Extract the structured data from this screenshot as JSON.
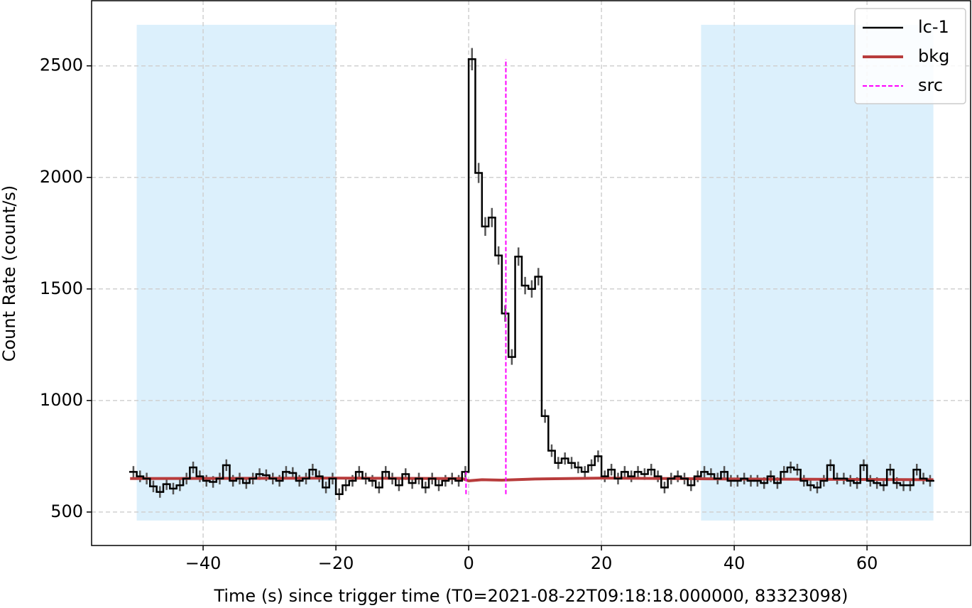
{
  "chart_data": {
    "type": "histogram",
    "xlabel": "Time (s) since trigger time (T0=2021-08-22T09:18:18.000000, 83323098)",
    "ylabel": "Count Rate (count/s)",
    "xlim": [
      -56.8,
      75.6
    ],
    "ylim": [
      350,
      2792
    ],
    "xticks": [
      {
        "value": -40,
        "label": "−40"
      },
      {
        "value": -20,
        "label": "−20"
      },
      0,
      20,
      40,
      60
    ],
    "yticks": [
      500,
      1000,
      1500,
      2000,
      2500
    ],
    "grid": true,
    "legend": "upper right",
    "bins": [
      -51,
      -50,
      -49,
      -48,
      -47,
      -46,
      -45,
      -44,
      -43,
      -42,
      -41,
      -40,
      -39,
      -38,
      -37,
      -36,
      -35,
      -34,
      -33,
      -32,
      -31,
      -30,
      -29,
      -28,
      -27,
      -26,
      -25,
      -24,
      -23,
      -22,
      -21,
      -20,
      -19,
      -18,
      -17,
      -16,
      -15,
      -14,
      -13,
      -12,
      -11,
      -10,
      -9,
      -8,
      -7,
      -6,
      -5,
      -4,
      -3,
      -2,
      -1,
      0,
      1,
      2,
      3,
      4,
      5,
      6,
      7,
      8,
      9,
      10,
      11,
      12,
      13,
      14,
      15,
      16,
      17,
      18,
      19,
      20,
      21,
      22,
      23,
      24,
      25,
      26,
      27,
      28,
      29,
      30,
      31,
      32,
      33,
      34,
      35,
      36,
      37,
      38,
      39,
      40,
      41,
      42,
      43,
      44,
      45,
      46,
      47,
      48,
      49,
      50,
      51,
      52,
      53,
      54,
      55,
      56,
      57,
      58,
      59,
      60,
      61,
      62,
      63,
      64,
      65,
      66,
      67,
      68,
      69,
      70
    ],
    "shaded_regions": [
      [
        -50,
        -20
      ],
      [
        35,
        70
      ]
    ],
    "shade_ylim": [
      462,
      2684
    ],
    "shade_color": "#dcf0fc",
    "series": [
      {
        "name": "lc-1",
        "color": "#000000",
        "error_color": "#555555",
        "values": [
          680,
          660,
          650,
          615,
          590,
          625,
          605,
          620,
          650,
          700,
          660,
          640,
          635,
          650,
          710,
          640,
          650,
          630,
          650,
          670,
          665,
          650,
          640,
          680,
          675,
          640,
          650,
          690,
          660,
          610,
          650,
          580,
          620,
          640,
          680,
          650,
          640,
          610,
          680,
          650,
          620,
          670,
          630,
          650,
          610,
          650,
          620,
          640,
          650,
          640,
          680,
          2530,
          2020,
          1780,
          1820,
          1650,
          1390,
          1195,
          1645,
          1515,
          1500,
          1555,
          930,
          775,
          720,
          740,
          720,
          700,
          680,
          710,
          750,
          660,
          690,
          650,
          680,
          660,
          680,
          670,
          690,
          660,
          610,
          650,
          660,
          650,
          620,
          660,
          680,
          670,
          650,
          680,
          640,
          640,
          650,
          640,
          640,
          630,
          660,
          630,
          680,
          700,
          690,
          640,
          620,
          610,
          640,
          710,
          650,
          650,
          640,
          630,
          710,
          640,
          630,
          620,
          690,
          630,
          620,
          620,
          690,
          650,
          640
        ],
        "errors": [
          26,
          26,
          26,
          26,
          26,
          26,
          26,
          26,
          26,
          26,
          26,
          26,
          26,
          26,
          26,
          26,
          26,
          26,
          26,
          26,
          26,
          26,
          26,
          26,
          26,
          26,
          26,
          26,
          26,
          26,
          26,
          26,
          26,
          26,
          26,
          26,
          26,
          26,
          26,
          26,
          26,
          26,
          26,
          26,
          26,
          26,
          26,
          26,
          26,
          26,
          26,
          50,
          45,
          42,
          43,
          41,
          37,
          35,
          41,
          39,
          39,
          39,
          30,
          28,
          27,
          27,
          27,
          26,
          26,
          26,
          26,
          26,
          26,
          26,
          26,
          26,
          26,
          26,
          26,
          26,
          26,
          26,
          26,
          26,
          26,
          26,
          26,
          26,
          26,
          26,
          26,
          26,
          26,
          26,
          26,
          26,
          26,
          26,
          26,
          26,
          26,
          26,
          26,
          26,
          26,
          26,
          26,
          26,
          26,
          26,
          26,
          26,
          26,
          26,
          26,
          26,
          26,
          26,
          26,
          26,
          26
        ]
      },
      {
        "name": "bkg",
        "color": "#b83c3c",
        "x": [
          -51,
          -20,
          -1,
          0,
          2,
          5,
          10,
          20,
          40,
          70
        ],
        "values": [
          650,
          652,
          650,
          640,
          645,
          643,
          648,
          652,
          648,
          645
        ]
      },
      {
        "name": "src",
        "color": "#ff00ff",
        "x": [
          -0.4,
          5.6
        ],
        "ymin": [
          580,
          580
        ],
        "ymax": [
          680,
          2530
        ]
      }
    ]
  }
}
